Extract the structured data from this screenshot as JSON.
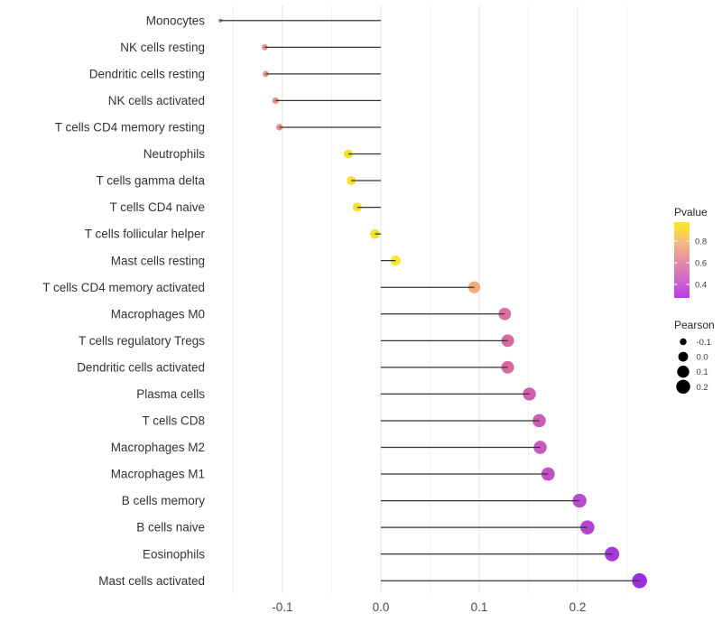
{
  "chart_data": {
    "type": "lollipop",
    "orientation": "horizontal",
    "title": "",
    "xlabel": "",
    "ylabel": "",
    "background": "#ffffff",
    "stick_color": "#333333",
    "grid": true,
    "xlim": [
      -0.1715,
      0.2835
    ],
    "xticks": {
      "values": [
        -0.1,
        0.0,
        0.1,
        0.2
      ],
      "labels": [
        "-0.1",
        "0.0",
        "0.1",
        "0.2"
      ]
    },
    "xticks_minor": [
      -0.15,
      -0.05,
      0.05,
      0.15,
      0.25
    ],
    "points": [
      {
        "category": "Monocytes",
        "pearson": -0.163,
        "color": "#cb5bc7"
      },
      {
        "category": "NK cells resting",
        "pearson": -0.118,
        "color": "#e8908e"
      },
      {
        "category": "Dendritic cells resting",
        "pearson": -0.117,
        "color": "#e8908e"
      },
      {
        "category": "NK cells activated",
        "pearson": -0.107,
        "color": "#e78f8c"
      },
      {
        "category": "T cells CD4 memory resting",
        "pearson": -0.103,
        "color": "#e8918c"
      },
      {
        "category": "Neutrophils",
        "pearson": -0.033,
        "color": "#f5e029"
      },
      {
        "category": "T cells gamma delta",
        "pearson": -0.03,
        "color": "#f5e029"
      },
      {
        "category": "T cells CD4 naive",
        "pearson": -0.024,
        "color": "#f6e133"
      },
      {
        "category": "T cells follicular helper",
        "pearson": -0.006,
        "color": "#f5e42b"
      },
      {
        "category": "Mast cells resting",
        "pearson": 0.015,
        "color": "#f6e62e"
      },
      {
        "category": "T cells CD4 memory activated",
        "pearson": 0.095,
        "color": "#f0ac79"
      },
      {
        "category": "Macrophages M0",
        "pearson": 0.126,
        "color": "#db6f9f"
      },
      {
        "category": "T cells regulatory Tregs",
        "pearson": 0.129,
        "color": "#d9679f"
      },
      {
        "category": "Dendritic cells activated",
        "pearson": 0.129,
        "color": "#d9679f"
      },
      {
        "category": "Plasma cells",
        "pearson": 0.151,
        "color": "#d05fad"
      },
      {
        "category": "T cells CD8",
        "pearson": 0.161,
        "color": "#d05cb8"
      },
      {
        "category": "Macrophages M2",
        "pearson": 0.162,
        "color": "#cb58c0"
      },
      {
        "category": "Macrophages M1",
        "pearson": 0.17,
        "color": "#c250c7"
      },
      {
        "category": "B cells memory",
        "pearson": 0.202,
        "color": "#b94bd0"
      },
      {
        "category": "B cells naive",
        "pearson": 0.21,
        "color": "#b244d4"
      },
      {
        "category": "Eosinophils",
        "pearson": 0.235,
        "color": "#a438dc"
      },
      {
        "category": "Mast cells activated",
        "pearson": 0.263,
        "color": "#9a2fe0"
      }
    ],
    "legend": {
      "pvalue": {
        "title": "Pvalue",
        "bar_range": [
          0.975,
          0.275
        ],
        "ticks": [
          {
            "label": "0.8",
            "value": 0.8
          },
          {
            "label": "0.6",
            "value": 0.6
          },
          {
            "label": "0.4",
            "value": 0.4
          }
        ],
        "gradient": [
          {
            "offset": 0.0,
            "color": "#f9e721"
          },
          {
            "offset": 0.1,
            "color": "#f8dc38"
          },
          {
            "offset": 0.25,
            "color": "#f6bd7d"
          },
          {
            "offset": 0.54,
            "color": "#e189a8"
          },
          {
            "offset": 0.82,
            "color": "#cd5ed3"
          },
          {
            "offset": 1.0,
            "color": "#ba3be5"
          }
        ]
      },
      "pearson": {
        "title": "Pearson",
        "items": [
          {
            "label": "-0.1",
            "value": -0.1
          },
          {
            "label": "0.0",
            "value": 0.0
          },
          {
            "label": "0.1",
            "value": 0.1
          },
          {
            "label": "0.2",
            "value": 0.2
          }
        ]
      }
    },
    "colors": {
      "grid_major": "#e3e3e3",
      "grid_minor": "#f2f2f2",
      "axis_text": "#4d4d4d",
      "category_text": "#333333",
      "legend_title_text": "#262626",
      "legend_tick_text": "#3d3d3d",
      "legend_dot": "#000000"
    }
  }
}
